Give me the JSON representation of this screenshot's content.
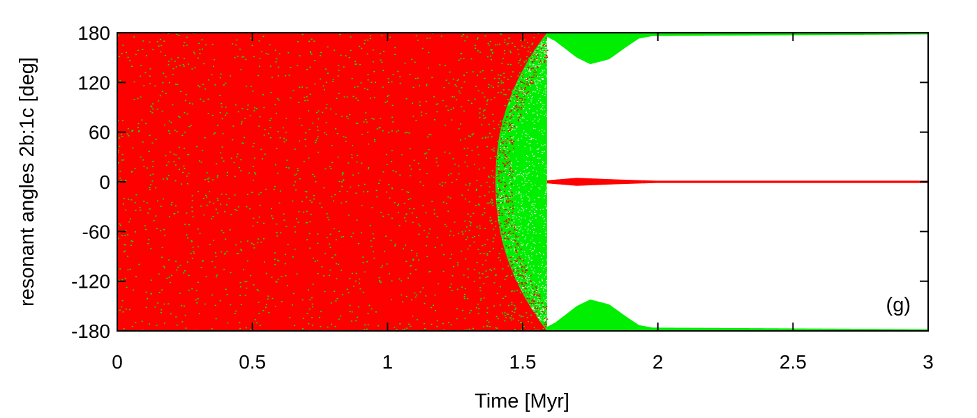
{
  "chart_data": {
    "type": "scatter",
    "title": "",
    "xlabel": "Time [Myr]",
    "ylabel": "resonant angles 2b:1c [deg]",
    "xlim": [
      0,
      3
    ],
    "ylim": [
      -180,
      180
    ],
    "xticks": [
      0,
      0.5,
      1,
      1.5,
      2,
      2.5,
      3
    ],
    "xtick_labels": [
      "0",
      "0.5",
      "1",
      "1.5",
      "2",
      "2.5",
      "3"
    ],
    "yticks": [
      -180,
      -120,
      -60,
      0,
      60,
      120,
      180
    ],
    "ytick_labels": [
      "-180",
      "-120",
      "-60",
      "0",
      "60",
      "120",
      "180"
    ],
    "grid": false,
    "annotation": "(g)",
    "series": [
      {
        "color": "#ff0000",
        "segments": [
          {
            "regime": "circulation",
            "x": [
              0,
              1.59
            ],
            "y_range": [
              -180,
              180
            ],
            "boundary_to_1.59": "narrowing toward ±180 from x=1.40"
          },
          {
            "regime": "libration_about_0",
            "x": [
              1.59,
              3.0
            ],
            "amplitude": [
              [
                1.59,
                1
              ],
              [
                1.7,
                4
              ],
              [
                1.85,
                2
              ],
              [
                2.0,
                0.5
              ],
              [
                3.0,
                0.5
              ]
            ]
          }
        ]
      },
      {
        "color": "#00ee00",
        "segments": [
          {
            "regime": "scattered_within_red",
            "x": [
              0,
              1.59
            ]
          },
          {
            "regime": "circulation",
            "x": [
              1.35,
              1.59
            ],
            "y_range": [
              -180,
              180
            ]
          },
          {
            "regime": "libration_about_180",
            "x": [
              1.59,
              3.0
            ],
            "amplitude": [
              [
                1.59,
                5
              ],
              [
                1.62,
                10
              ],
              [
                1.7,
                30
              ],
              [
                1.75,
                38
              ],
              [
                1.82,
                32
              ],
              [
                1.88,
                18
              ],
              [
                1.93,
                7
              ],
              [
                1.98,
                4
              ],
              [
                2.5,
                3
              ],
              [
                3.0,
                2
              ]
            ]
          }
        ]
      }
    ]
  }
}
